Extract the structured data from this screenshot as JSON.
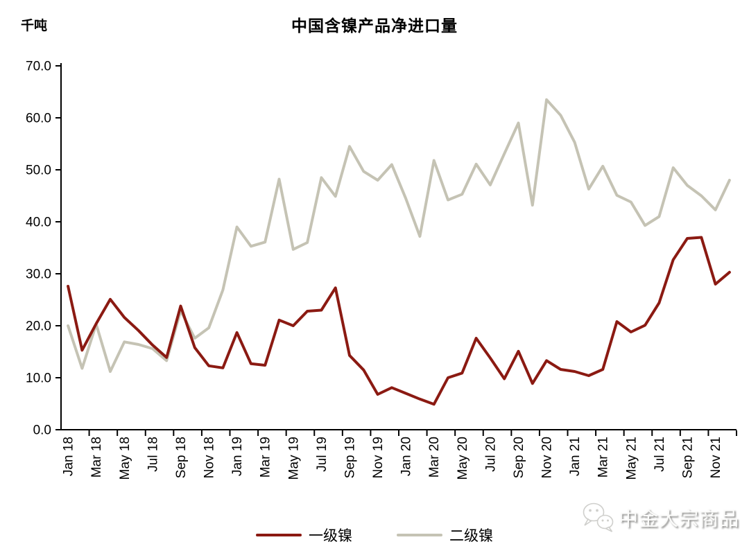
{
  "chart_data": {
    "type": "line",
    "title": "中国含镍产品净进口量",
    "unit_label": "千吨",
    "ylim": [
      0,
      70
    ],
    "grid": false,
    "legend_position": "bottom",
    "y_tick_labels": [
      "0.0",
      "10.0",
      "20.0",
      "30.0",
      "40.0",
      "50.0",
      "60.0",
      "70.0"
    ],
    "x_tick_labels": [
      "Jan 18",
      "Mar 18",
      "May 18",
      "Jul 18",
      "Sep 18",
      "Nov 18",
      "Jan 19",
      "Mar 19",
      "May 19",
      "Jul 19",
      "Sep 19",
      "Nov 19",
      "Jan 20",
      "Mar 20",
      "May 20",
      "Jul 20",
      "Sep 20",
      "Nov 20",
      "Jan 21",
      "Mar 21",
      "May 21",
      "Jul 21",
      "Sep 21",
      "Nov 21"
    ],
    "x_months": [
      "Jan 18",
      "Feb 18",
      "Mar 18",
      "Apr 18",
      "May 18",
      "Jun 18",
      "Jul 18",
      "Aug 18",
      "Sep 18",
      "Oct 18",
      "Nov 18",
      "Dec 18",
      "Jan 19",
      "Feb 19",
      "Mar 19",
      "Apr 19",
      "May 19",
      "Jun 19",
      "Jul 19",
      "Aug 19",
      "Sep 19",
      "Oct 19",
      "Nov 19",
      "Dec 19",
      "Jan 20",
      "Feb 20",
      "Mar 20",
      "Apr 20",
      "May 20",
      "Jun 20",
      "Jul 20",
      "Aug 20",
      "Sep 20",
      "Oct 20",
      "Nov 20",
      "Dec 20",
      "Jan 21",
      "Feb 21",
      "Mar 21",
      "Apr 21",
      "May 21",
      "Jun 21",
      "Jul 21",
      "Aug 21",
      "Sep 21",
      "Oct 21",
      "Nov 21",
      "Dec 21"
    ],
    "series": [
      {
        "name": "一级镍",
        "color": "#8B1A12",
        "values": [
          27.6,
          15.3,
          20.4,
          25.1,
          21.6,
          19.1,
          16.3,
          13.9,
          23.8,
          15.8,
          12.3,
          11.9,
          18.7,
          12.7,
          12.4,
          21.1,
          20.0,
          22.8,
          23.0,
          27.3,
          14.3,
          11.5,
          6.8,
          8.1,
          7.0,
          5.9,
          4.9,
          10.0,
          10.9,
          17.6,
          13.8,
          9.8,
          15.1,
          8.9,
          13.3,
          11.6,
          11.2,
          10.4,
          11.6,
          20.8,
          18.8,
          20.1,
          24.4,
          32.7,
          36.8,
          37.0,
          28.0,
          30.3
        ]
      },
      {
        "name": "二级镍",
        "color": "#C5C3B4",
        "values": [
          20.0,
          11.8,
          20.3,
          11.2,
          16.9,
          16.4,
          15.6,
          13.3,
          22.9,
          17.6,
          19.6,
          26.9,
          39.0,
          35.3,
          36.1,
          48.2,
          34.7,
          36.0,
          48.5,
          44.9,
          54.5,
          49.7,
          48.0,
          51.0,
          44.5,
          37.2,
          51.8,
          44.2,
          45.3,
          51.1,
          47.1,
          53.1,
          59.0,
          43.2,
          63.5,
          60.5,
          55.3,
          46.3,
          50.7,
          45.1,
          43.8,
          39.3,
          41.0,
          50.4,
          47.0,
          45.0,
          42.3,
          48.0
        ]
      }
    ]
  },
  "watermark": {
    "text": "中金大宗商品",
    "icon": "wechat-icon"
  }
}
